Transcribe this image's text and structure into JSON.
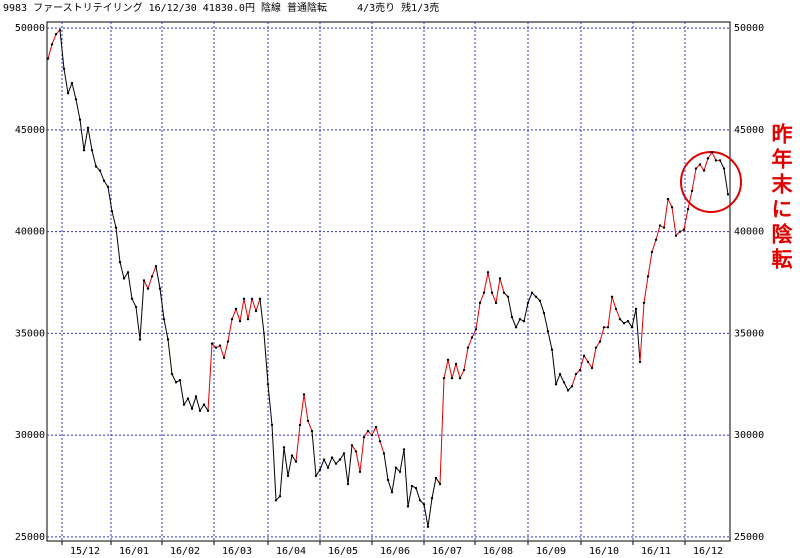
{
  "chart_data": {
    "type": "line",
    "title": "9983 ファーストリテイリング 16/12/30 41830.0円 陰線 普通陰転     4/3売り 残1/3売",
    "annotation": "昨年末に陰転",
    "values": [
      48500,
      49200,
      49700,
      49900,
      48000,
      46800,
      47300,
      46500,
      45500,
      44000,
      45100,
      44000,
      43200,
      43000,
      42500,
      42200,
      41000,
      40200,
      38500,
      37700,
      38000,
      36700,
      36300,
      34700,
      37600,
      37200,
      37800,
      38300,
      37200,
      35700,
      34700,
      33000,
      32600,
      32700,
      31500,
      31800,
      31300,
      31900,
      31200,
      31500,
      31200,
      34500,
      34300,
      34400,
      33800,
      34600,
      35700,
      36200,
      35600,
      36700,
      35700,
      36700,
      36100,
      36700,
      35000,
      32500,
      30500,
      26800,
      27000,
      29400,
      28000,
      29000,
      28700,
      30500,
      32000,
      30700,
      30200,
      28000,
      28300,
      28800,
      28400,
      28900,
      28600,
      28800,
      29100,
      27600,
      29500,
      29200,
      28200,
      29900,
      30200,
      30000,
      30400,
      29700,
      29100,
      27800,
      27200,
      28400,
      28200,
      29300,
      26500,
      27500,
      27400,
      26800,
      26600,
      25500,
      26900,
      27900,
      27600,
      32800,
      33700,
      32800,
      33500,
      32800,
      33200,
      34300,
      34800,
      35200,
      36500,
      37000,
      38000,
      37000,
      36500,
      37700,
      37000,
      36800,
      35800,
      35300,
      35700,
      35600,
      36500,
      37000,
      36800,
      36600,
      36000,
      35100,
      34200,
      32500,
      33000,
      32600,
      32200,
      32400,
      33000,
      33200,
      33900,
      33600,
      33300,
      34300,
      34600,
      35300,
      35300,
      36800,
      36200,
      35700,
      35500,
      35600,
      35300,
      36200,
      33600,
      36500,
      37800,
      39000,
      39600,
      40300,
      40200,
      41600,
      41200,
      39800,
      40000,
      40100,
      41100,
      42000,
      43100,
      43300,
      43000,
      43600,
      43900,
      43500,
      43500,
      43100,
      41830
    ],
    "color_runs": [
      {
        "from": 0,
        "to": 3,
        "color": "#e00000"
      },
      {
        "from": 4,
        "to": 24,
        "color": "#000000"
      },
      {
        "from": 25,
        "to": 27,
        "color": "#e00000"
      },
      {
        "from": 28,
        "to": 40,
        "color": "#000000"
      },
      {
        "from": 41,
        "to": 53,
        "color": "#e00000"
      },
      {
        "from": 54,
        "to": 62,
        "color": "#000000"
      },
      {
        "from": 63,
        "to": 66,
        "color": "#e00000"
      },
      {
        "from": 67,
        "to": 76,
        "color": "#000000"
      },
      {
        "from": 77,
        "to": 84,
        "color": "#e00000"
      },
      {
        "from": 85,
        "to": 98,
        "color": "#000000"
      },
      {
        "from": 99,
        "to": 114,
        "color": "#e00000"
      },
      {
        "from": 115,
        "to": 131,
        "color": "#000000"
      },
      {
        "from": 132,
        "to": 143,
        "color": "#e00000"
      },
      {
        "from": 144,
        "to": 148,
        "color": "#000000"
      },
      {
        "from": 149,
        "to": 168,
        "color": "#e00000"
      },
      {
        "from": 169,
        "to": 170,
        "color": "#000000"
      }
    ],
    "xlim": [
      -0.25,
      170.5
    ],
    "xticks": [
      {
        "value": 3.5,
        "label": "15/12"
      },
      {
        "value": 15.75,
        "label": "16/01"
      },
      {
        "value": 28.5,
        "label": "16/02"
      },
      {
        "value": 41.5,
        "label": "16/03"
      },
      {
        "value": 55,
        "label": "16/04"
      },
      {
        "value": 68,
        "label": "16/05"
      },
      {
        "value": 81,
        "label": "16/06"
      },
      {
        "value": 94,
        "label": "16/07"
      },
      {
        "value": 106.75,
        "label": "16/08"
      },
      {
        "value": 120,
        "label": "16/09"
      },
      {
        "value": 133.25,
        "label": "16/10"
      },
      {
        "value": 146.25,
        "label": "16/11"
      },
      {
        "value": 159.25,
        "label": "16/12"
      }
    ],
    "ylim": [
      24800,
      50300
    ],
    "yticks": [
      25000,
      30000,
      35000,
      40000,
      45000,
      50000
    ],
    "grid": true,
    "grid_color": "#3333cc"
  }
}
